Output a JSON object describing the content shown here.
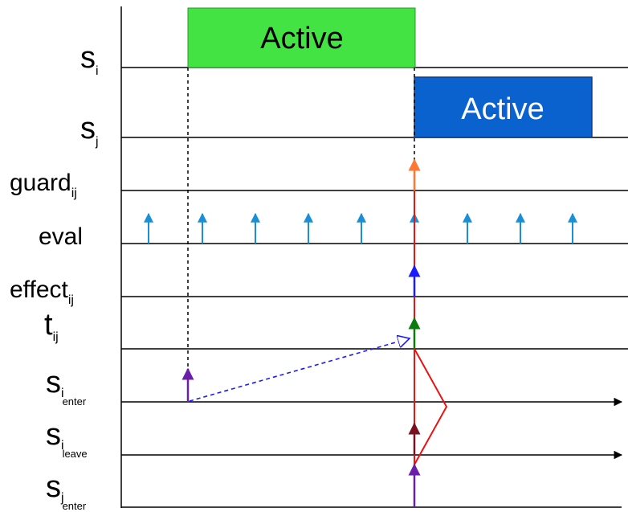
{
  "lanes": [
    {
      "id": "si",
      "base": "s",
      "sub": "i",
      "subsub": ""
    },
    {
      "id": "sj",
      "base": "s",
      "sub": "j",
      "subsub": ""
    },
    {
      "id": "guard",
      "base": "guard",
      "sub": "ij",
      "subsub": ""
    },
    {
      "id": "eval",
      "base": "eval",
      "sub": "",
      "subsub": ""
    },
    {
      "id": "effect",
      "base": "effect",
      "sub": "ij",
      "subsub": ""
    },
    {
      "id": "tij",
      "base": "t",
      "sub": "ij",
      "subsub": ""
    },
    {
      "id": "si-enter",
      "base": "s",
      "sub": "i",
      "subsub": "enter"
    },
    {
      "id": "si-leave",
      "base": "s",
      "sub": "i",
      "subsub": "leave"
    },
    {
      "id": "sj-enter",
      "base": "s",
      "sub": "j",
      "subsub": "enter"
    }
  ],
  "boxes": {
    "si_active": {
      "label": "Active",
      "fill": "#44e344",
      "text_color": "#000000"
    },
    "sj_active": {
      "label": "Active",
      "fill": "#0a62cf",
      "text_color": "#ffffff"
    }
  },
  "colors": {
    "eval_arrow": "#1a8fd8",
    "guard_arrow": "#ff7733",
    "effect_arrow": "#1a1aff",
    "tij_arrow": "#0c7a0c",
    "si_enter_arrow": "#6a1fa8",
    "si_leave_arrow": "#7a1020",
    "sj_enter_arrow": "#6a1fa8",
    "causal_line": "#ee1111",
    "dashed_arrow": "#1a1aff"
  }
}
